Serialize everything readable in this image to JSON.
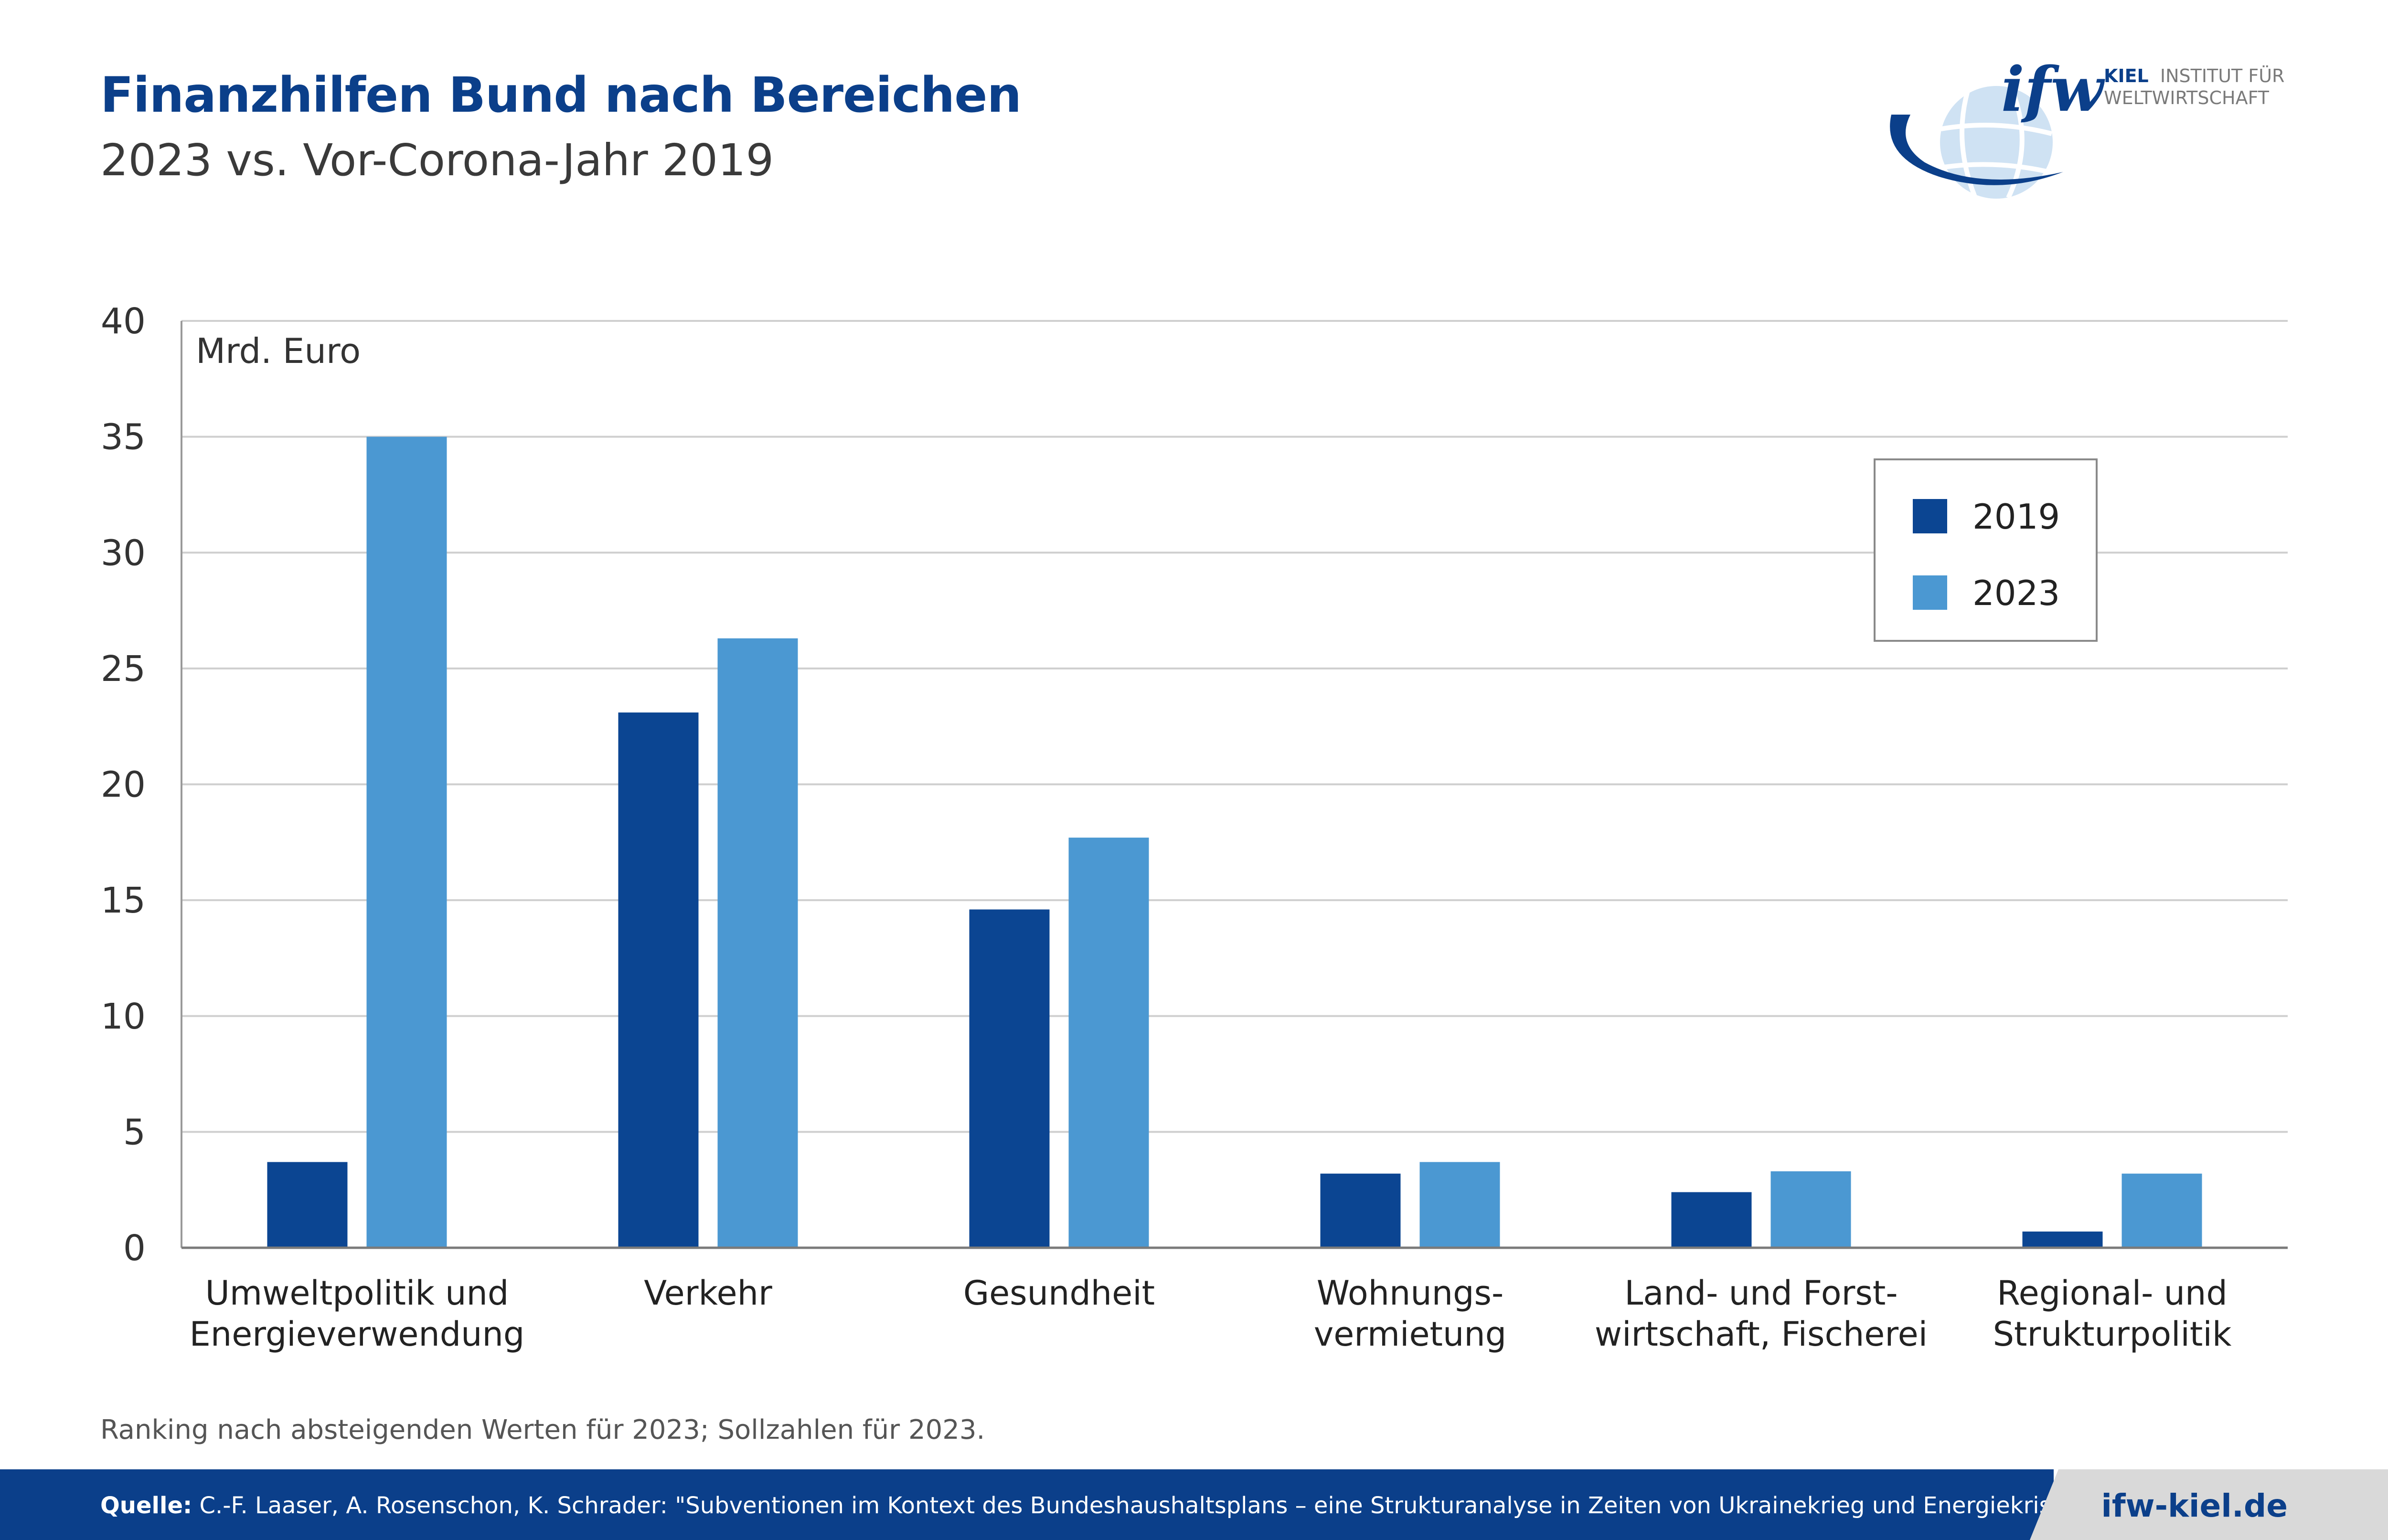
{
  "header": {
    "title": "Finanzhilfen Bund nach Bereichen",
    "subtitle": "2023 vs. Vor-Corona-Jahr 2019"
  },
  "logo": {
    "mark": "ifw",
    "line1_bold": "KIEL",
    "line1_rest": "INSTITUT FÜR",
    "line2": "WELTWIRTSCHAFT"
  },
  "chart_data": {
    "type": "bar",
    "unit_label": "Mrd. Euro",
    "ylim": [
      0,
      40
    ],
    "yticks": [
      0,
      5,
      10,
      15,
      20,
      25,
      30,
      35,
      40
    ],
    "grid": true,
    "legend_position": "top-right",
    "categories": [
      [
        "Umweltpolitik und",
        "Energieverwendung"
      ],
      [
        "Verkehr"
      ],
      [
        "Gesundheit"
      ],
      [
        "Wohnungs-",
        "vermietung"
      ],
      [
        "Land- und Forst-",
        "wirtschaft, Fischerei"
      ],
      [
        "Regional- und",
        "Strukturpolitik"
      ]
    ],
    "series": [
      {
        "name": "2019",
        "color": "#0b4592",
        "values": [
          3.7,
          23.1,
          14.6,
          3.2,
          2.4,
          0.7
        ]
      },
      {
        "name": "2023",
        "color": "#4b98d2",
        "values": [
          35.0,
          26.3,
          17.7,
          3.7,
          3.3,
          3.2
        ]
      }
    ]
  },
  "note": "Ranking nach absteigenden Werten für 2023; Sollzahlen für 2023.",
  "footer": {
    "source_label": "Quelle:",
    "source_text": "C.-F. Laaser, A. Rosenschon, K. Schrader: \"Subventionen im Kontext des Bundeshaushaltsplans – eine Strukturanalyse in Zeiten von Ukrainekrieg und Energiekrise\"",
    "site": "ifw-kiel.de"
  },
  "colors": {
    "brand_dark_blue": "#0b3f8a",
    "bar_2019": "#0b4592",
    "bar_2023": "#4b98d2",
    "footer_right_bg": "#d9d9d9"
  }
}
